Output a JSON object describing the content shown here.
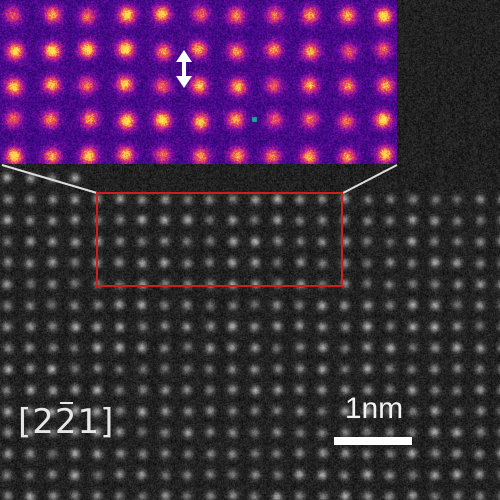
{
  "figure": {
    "zone_axis_prefix": "[2",
    "zone_axis_barred": "2",
    "zone_axis_suffix": "1]",
    "scale_bar_label": "1nm"
  },
  "colors": {
    "highlight_box": "#cc1f1f",
    "connector_lines": "#dcdcdc",
    "arrow": "#ffffff",
    "inset_base": "#2a0a6a",
    "inset_peak": "#ffb040",
    "scale_bar": "#ffffff"
  },
  "icons": {
    "displacement_marker": "double-headed-vertical-arrow-icon"
  }
}
